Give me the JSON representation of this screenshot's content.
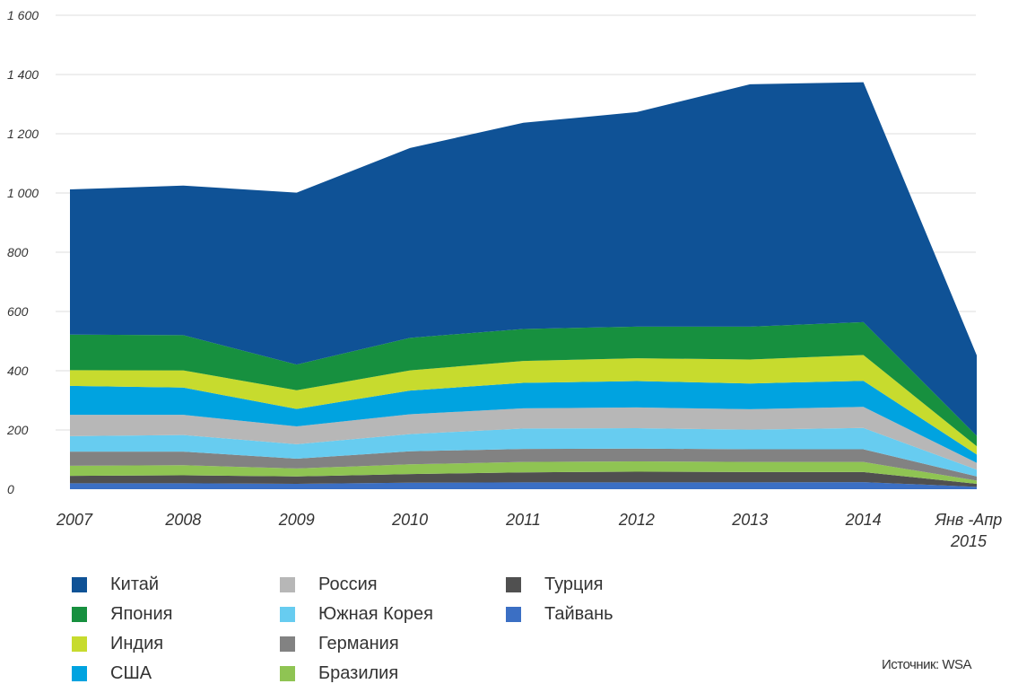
{
  "chart_data": {
    "type": "area",
    "stacked": true,
    "categories": [
      "2007",
      "2008",
      "2009",
      "2010",
      "2011",
      "2012",
      "2013",
      "2014",
      [
        "Янв -Апр",
        "2015"
      ]
    ],
    "y_tick_labels": [
      "0",
      "200",
      "400",
      "600",
      "800",
      "1 000",
      "1 200",
      "1 400",
      "1 600"
    ],
    "ylim": [
      0,
      1600
    ],
    "grid": true,
    "legend_position": "bottom",
    "series": [
      {
        "name": "Тайвань",
        "color": "#3b6fc4",
        "values": [
          20,
          20,
          18,
          22,
          23,
          23,
          23,
          24,
          8
        ]
      },
      {
        "name": "Турция",
        "color": "#505050",
        "values": [
          25,
          27,
          25,
          29,
          34,
          36,
          35,
          34,
          10
        ]
      },
      {
        "name": "Бразилия",
        "color": "#8fc453",
        "values": [
          34,
          34,
          27,
          33,
          35,
          35,
          34,
          34,
          11
        ]
      },
      {
        "name": "Германия",
        "color": "#828282",
        "values": [
          48,
          46,
          33,
          44,
          44,
          43,
          43,
          43,
          14
        ]
      },
      {
        "name": "Южная Корея",
        "color": "#67ccf0",
        "values": [
          52,
          56,
          49,
          58,
          69,
          69,
          66,
          72,
          23
        ]
      },
      {
        "name": "Россия",
        "color": "#b7b7b7",
        "values": [
          72,
          68,
          60,
          67,
          68,
          70,
          69,
          71,
          23
        ]
      },
      {
        "name": "США",
        "color": "#00a3e0",
        "values": [
          98,
          92,
          59,
          80,
          86,
          89,
          87,
          88,
          28
        ]
      },
      {
        "name": "Индия",
        "color": "#c7db2e",
        "values": [
          53,
          58,
          63,
          68,
          74,
          77,
          81,
          87,
          28
        ]
      },
      {
        "name": "Япония",
        "color": "#17903f",
        "values": [
          120,
          119,
          87,
          110,
          108,
          107,
          111,
          111,
          35
        ]
      },
      {
        "name": "Китай",
        "color": "#0f5296",
        "values": [
          490,
          505,
          580,
          641,
          696,
          724,
          818,
          810,
          272
        ]
      }
    ],
    "legend_order": [
      "Китай",
      "Япония",
      "Индия",
      "США",
      "Россия",
      "Южная Корея",
      "Германия",
      "Бразилия",
      "Турция",
      "Тайвань"
    ]
  },
  "source": "Источник: WSA"
}
